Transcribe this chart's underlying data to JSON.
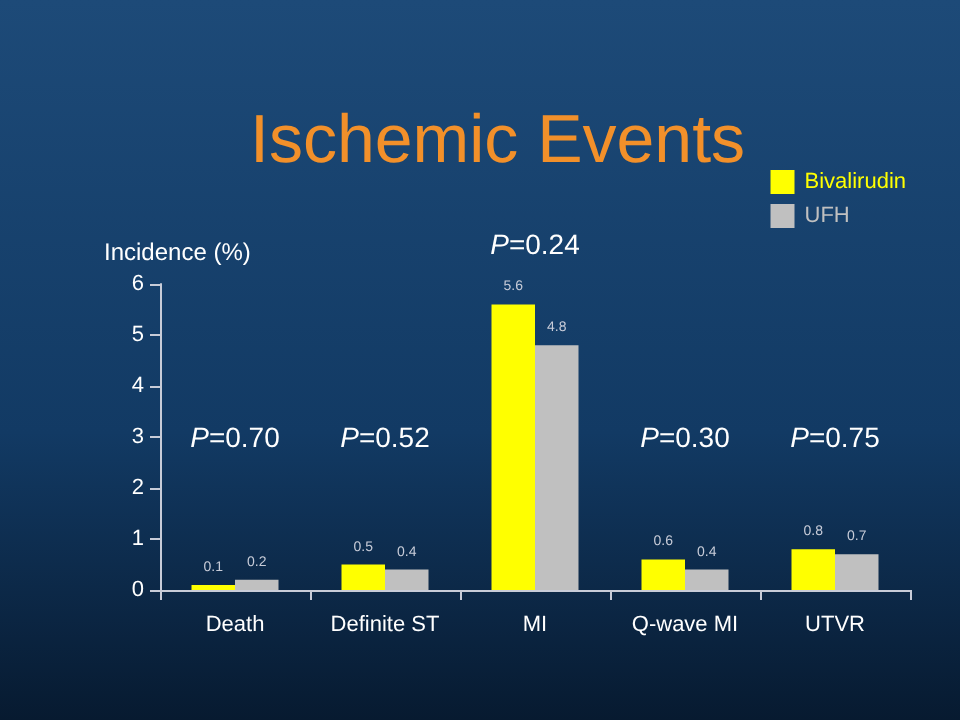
{
  "chart_data": {
    "type": "bar",
    "title": "Ischemic Events",
    "ylabel": "Incidence (%)",
    "categories": [
      "Death",
      "Definite ST",
      "MI",
      "Q-wave MI",
      "UTVR"
    ],
    "series": [
      {
        "name": "Bivalirudin",
        "color": "#ffff00",
        "values": [
          0.1,
          0.5,
          5.6,
          0.6,
          0.8
        ]
      },
      {
        "name": "UFH",
        "color": "#c0c0c0",
        "values": [
          0.2,
          0.4,
          4.8,
          0.4,
          0.7
        ]
      }
    ],
    "ylim": [
      0,
      6
    ],
    "yticks": [
      0,
      1,
      2,
      3,
      4,
      5,
      6
    ],
    "grid": false,
    "legend": "top right",
    "data_labels": true,
    "annotations": [
      "P=0.70",
      "P=0.52",
      "P=0.24",
      "P=0.30",
      "P=0.75"
    ]
  }
}
